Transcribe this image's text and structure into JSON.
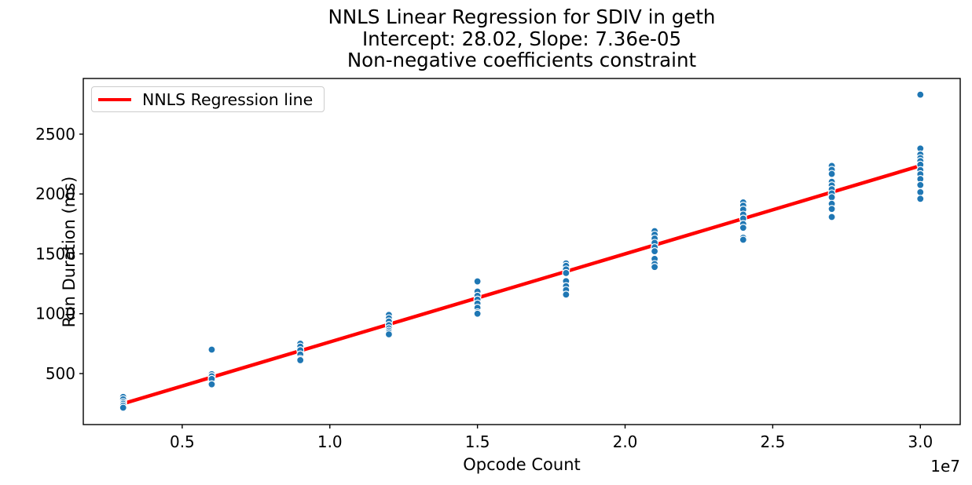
{
  "figure": {
    "background": "#ffffff",
    "text_color": "#000000",
    "spine_color": "#000000"
  },
  "chart_data": {
    "type": "scatter",
    "title_lines": [
      "NNLS Linear Regression for SDIV in geth",
      "Intercept: 28.02, Slope: 7.36e-05",
      "Non-negative coefficients constraint"
    ],
    "xlabel": "Opcode Count",
    "ylabel": "Run Duration (ms)",
    "x_offset_label": "1e7",
    "xlim": [
      1650000,
      31350000
    ],
    "ylim": [
      74,
      2965
    ],
    "grid": false,
    "x_ticks": {
      "values": [
        5000000,
        10000000,
        15000000,
        20000000,
        25000000,
        30000000
      ],
      "labels": [
        "0.5",
        "1.0",
        "1.5",
        "2.0",
        "2.5",
        "3.0"
      ]
    },
    "y_ticks": {
      "values": [
        500,
        1000,
        1500,
        2000,
        2500
      ],
      "labels": [
        "500",
        "1000",
        "1500",
        "2000",
        "2500"
      ]
    },
    "legend": {
      "position": "upper-left",
      "entries": [
        {
          "label": "NNLS Regression line",
          "color": "#ff0000",
          "type": "line"
        }
      ]
    },
    "scatter": {
      "color": "#1f77b4",
      "edge_color": "#ffffff",
      "marker_radius": 4.5,
      "clusters": [
        {
          "x": 3000000,
          "values": [
            305,
            285,
            262,
            248,
            232,
            215
          ]
        },
        {
          "x": 6000000,
          "values": [
            700,
            495,
            478,
            455,
            410
          ]
        },
        {
          "x": 9000000,
          "values": [
            750,
            725,
            695,
            660,
            622,
            612
          ]
        },
        {
          "x": 12000000,
          "values": [
            990,
            962,
            935,
            905,
            878,
            858,
            843,
            828
          ]
        },
        {
          "x": 15000000,
          "values": [
            1270,
            1185,
            1150,
            1118,
            1085,
            1050,
            1012,
            1000
          ]
        },
        {
          "x": 18000000,
          "values": [
            1420,
            1400,
            1370,
            1340,
            1272,
            1230,
            1198,
            1160
          ]
        },
        {
          "x": 21000000,
          "values": [
            1690,
            1660,
            1628,
            1592,
            1555,
            1522,
            1458,
            1415,
            1390
          ]
        },
        {
          "x": 24000000,
          "values": [
            1930,
            1903,
            1870,
            1828,
            1795,
            1750,
            1718,
            1635,
            1618
          ]
        },
        {
          "x": 27000000,
          "values": [
            2235,
            2202,
            2168,
            2102,
            2072,
            2040,
            2005,
            1973,
            1918,
            1875,
            1808
          ]
        },
        {
          "x": 30000000,
          "values": [
            2830,
            2380,
            2330,
            2300,
            2275,
            2245,
            2200,
            2165,
            2125,
            2075,
            2015,
            1960
          ]
        }
      ]
    },
    "regression_line": {
      "intercept": 28.02,
      "slope": 7.36e-05,
      "x_start": 3000000,
      "x_end": 30000000,
      "color": "#ff0000",
      "width": 4.5
    }
  }
}
